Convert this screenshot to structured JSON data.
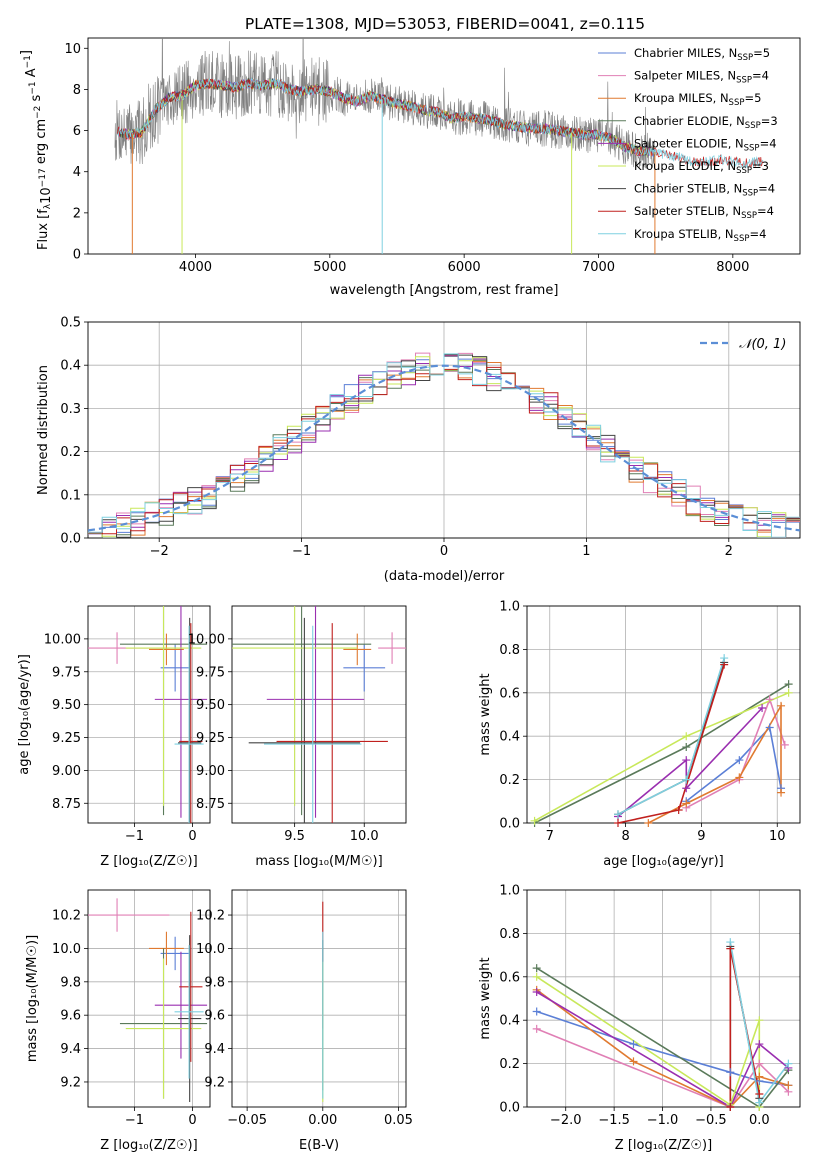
{
  "figure": {
    "title": "PLATE=1308, MJD=53053, FIBERID=0041, z=0.115"
  },
  "colors": {
    "Chabrier MILES": "#5b7fd6",
    "Salpeter MILES": "#e07fb5",
    "Kroupa MILES": "#e07a30",
    "Chabrier ELODIE": "#5a7a5a",
    "Salpeter ELODIE": "#9a2fb0",
    "Kroupa ELODIE": "#c8e85a",
    "Chabrier STELIB": "#444444",
    "Salpeter STELIB": "#c0201e",
    "Kroupa STELIB": "#7fd0e0",
    "data": "#808080",
    "normal": "#5b8ed6"
  },
  "legend_spectrum": [
    {
      "label": "Chabrier MILES, N",
      "sub": "SSP",
      "tail": "=5",
      "key": "Chabrier MILES"
    },
    {
      "label": "Salpeter MILES, N",
      "sub": "SSP",
      "tail": "=4",
      "key": "Salpeter MILES"
    },
    {
      "label": "Kroupa MILES, N",
      "sub": "SSP",
      "tail": "=5",
      "key": "Kroupa MILES"
    },
    {
      "label": "Chabrier ELODIE, N",
      "sub": "SSP",
      "tail": "=3",
      "key": "Chabrier ELODIE"
    },
    {
      "label": "Salpeter ELODIE, N",
      "sub": "SSP",
      "tail": "=4",
      "key": "Salpeter ELODIE"
    },
    {
      "label": "Kroupa ELODIE, N",
      "sub": "SSP",
      "tail": "=3",
      "key": "Kroupa ELODIE"
    },
    {
      "label": "Chabrier STELIB, N",
      "sub": "SSP",
      "tail": "=4",
      "key": "Chabrier STELIB"
    },
    {
      "label": "Salpeter STELIB, N",
      "sub": "SSP",
      "tail": "=4",
      "key": "Salpeter STELIB"
    },
    {
      "label": "Kroupa STELIB, N",
      "sub": "SSP",
      "tail": "=4",
      "key": "Kroupa STELIB"
    }
  ],
  "chart_data": [
    {
      "id": "spectrum",
      "type": "line",
      "xlabel": "wavelength [Angstrom, rest frame]",
      "ylabel": "Flux [f",
      "ylabel_parts": [
        "Flux [f",
        "λ",
        "10",
        "−17",
        " erg cm",
        "−2",
        " s",
        "−1",
        " A",
        "−1",
        "]"
      ],
      "xlim": [
        3200,
        8500
      ],
      "ylim": [
        0,
        10.5
      ],
      "xticks": [
        4000,
        5000,
        6000,
        7000,
        8000
      ],
      "yticks": [
        0,
        2,
        4,
        6,
        8,
        10
      ],
      "continuum": [
        [
          3400,
          6.0
        ],
        [
          3500,
          5.8
        ],
        [
          3600,
          5.9
        ],
        [
          3700,
          7.0
        ],
        [
          3800,
          7.6
        ],
        [
          3900,
          7.7
        ],
        [
          4000,
          8.2
        ],
        [
          4100,
          8.3
        ],
        [
          4200,
          8.2
        ],
        [
          4300,
          8.1
        ],
        [
          4400,
          8.3
        ],
        [
          4500,
          8.2
        ],
        [
          4600,
          8.3
        ],
        [
          4700,
          8.0
        ],
        [
          4800,
          7.9
        ],
        [
          4900,
          8.0
        ],
        [
          5000,
          7.9
        ],
        [
          5100,
          7.6
        ],
        [
          5200,
          7.4
        ],
        [
          5300,
          7.7
        ],
        [
          5400,
          7.5
        ],
        [
          5500,
          7.3
        ],
        [
          5600,
          7.2
        ],
        [
          5700,
          7.0
        ],
        [
          5800,
          6.9
        ],
        [
          5900,
          6.6
        ],
        [
          6000,
          6.7
        ],
        [
          6100,
          6.6
        ],
        [
          6200,
          6.5
        ],
        [
          6300,
          6.3
        ],
        [
          6400,
          6.2
        ],
        [
          6500,
          6.1
        ],
        [
          6600,
          6.1
        ],
        [
          6700,
          6.0
        ],
        [
          6800,
          5.9
        ],
        [
          6900,
          5.8
        ],
        [
          7000,
          5.8
        ],
        [
          7100,
          5.6
        ],
        [
          7200,
          5.2
        ],
        [
          7300,
          5.0
        ],
        [
          7400,
          5.0
        ],
        [
          7500,
          4.8
        ],
        [
          7600,
          4.7
        ],
        [
          7700,
          4.5
        ],
        [
          7800,
          4.5
        ],
        [
          7900,
          4.6
        ],
        [
          8000,
          4.5
        ],
        [
          8100,
          4.4
        ],
        [
          8200,
          4.5
        ]
      ]
    },
    {
      "id": "residuals",
      "type": "histogram",
      "xlabel": "(data-model)/error",
      "ylabel": "Normed distribution",
      "xlim": [
        -2.5,
        2.5
      ],
      "ylim": [
        0,
        0.5
      ],
      "xticks": [
        -2,
        -1,
        0,
        1,
        2
      ],
      "yticks": [
        0.0,
        0.1,
        0.2,
        0.3,
        0.4,
        0.5
      ],
      "legend": "𝒩(0, 1)",
      "bin_width": 0.1
    },
    {
      "id": "age_vs_Z",
      "type": "errorbar",
      "xlabel": "Z [log₁₀(Z/Z☉)]",
      "ylabel": "age  [log₁₀(age/yr)]",
      "xlim": [
        -1.8,
        0.3
      ],
      "ylim": [
        8.6,
        10.25
      ],
      "xticks": [
        -1,
        0
      ],
      "yticks": [
        8.75,
        9.0,
        9.25,
        9.5,
        9.75,
        10.0
      ],
      "points": [
        {
          "key": "Chabrier MILES",
          "x": -0.3,
          "xerr": 0.25,
          "y": 9.78,
          "yerr": 0.18
        },
        {
          "key": "Salpeter MILES",
          "x": -1.3,
          "xerr": 0.9,
          "y": 9.93,
          "yerr": 0.12
        },
        {
          "key": "Kroupa MILES",
          "x": -0.45,
          "xerr": 0.3,
          "y": 9.92,
          "yerr": 0.12
        },
        {
          "key": "Chabrier ELODIE",
          "x": -0.5,
          "xerr": 0.75,
          "y": 9.96,
          "yerr": 1.3
        },
        {
          "key": "Salpeter ELODIE",
          "x": -0.2,
          "xerr": 0.45,
          "y": 9.54,
          "yerr": 0.9
        },
        {
          "key": "Kroupa ELODIE",
          "x": -0.5,
          "xerr": 0.65,
          "y": 9.93,
          "yerr": 1.2
        },
        {
          "key": "Chabrier STELIB",
          "x": -0.05,
          "xerr": 0.2,
          "y": 9.21,
          "yerr": 0.95
        },
        {
          "key": "Salpeter STELIB",
          "x": -0.03,
          "xerr": 0.2,
          "y": 9.22,
          "yerr": 0.9
        },
        {
          "key": "Kroupa STELIB",
          "x": -0.06,
          "xerr": 0.25,
          "y": 9.2,
          "yerr": 0.9
        }
      ]
    },
    {
      "id": "age_vs_mass",
      "type": "errorbar",
      "xlabel": "mass [log₁₀(M/M☉)]",
      "ylabel": "",
      "xlim": [
        9.05,
        10.3
      ],
      "ylim": [
        8.6,
        10.25
      ],
      "xticks": [
        9.5,
        10.0
      ],
      "yticks": [
        8.75,
        9.0,
        9.25,
        9.5,
        9.75,
        10.0
      ],
      "points": [
        {
          "key": "Chabrier MILES",
          "x": 10.0,
          "xerr": 0.15,
          "y": 9.78,
          "yerr": 0.18
        },
        {
          "key": "Salpeter MILES",
          "x": 10.2,
          "xerr": 0.1,
          "y": 9.93,
          "yerr": 0.12
        },
        {
          "key": "Kroupa MILES",
          "x": 9.95,
          "xerr": 0.1,
          "y": 9.92,
          "yerr": 0.12
        },
        {
          "key": "Chabrier ELODIE",
          "x": 9.55,
          "xerr": 0.5,
          "y": 9.96,
          "yerr": 1.3
        },
        {
          "key": "Salpeter ELODIE",
          "x": 9.65,
          "xerr": 0.35,
          "y": 9.54,
          "yerr": 0.9
        },
        {
          "key": "Kroupa ELODIE",
          "x": 9.5,
          "xerr": 0.45,
          "y": 9.93,
          "yerr": 1.2
        },
        {
          "key": "Chabrier STELIB",
          "x": 9.57,
          "xerr": 0.4,
          "y": 9.21,
          "yerr": 0.95
        },
        {
          "key": "Salpeter STELIB",
          "x": 9.77,
          "xerr": 0.4,
          "y": 9.22,
          "yerr": 0.9
        },
        {
          "key": "Kroupa STELIB",
          "x": 9.63,
          "xerr": 0.35,
          "y": 9.2,
          "yerr": 0.9
        }
      ]
    },
    {
      "id": "mass_weight_vs_age",
      "type": "line",
      "xlabel": "age  [log₁₀(age/yr)]",
      "ylabel": "mass weight",
      "xlim": [
        6.7,
        10.3
      ],
      "ylim": [
        0,
        1.0
      ],
      "xticks": [
        7,
        8,
        9,
        10
      ],
      "yticks": [
        0.0,
        0.2,
        0.4,
        0.6,
        0.8,
        1.0
      ],
      "series": [
        {
          "key": "Chabrier MILES",
          "x": [
            8.8,
            9.5,
            9.9,
            10.05
          ],
          "y": [
            0.1,
            0.29,
            0.44,
            0.16
          ]
        },
        {
          "key": "Salpeter MILES",
          "x": [
            8.8,
            9.5,
            9.9,
            10.1
          ],
          "y": [
            0.07,
            0.2,
            0.57,
            0.36
          ]
        },
        {
          "key": "Kroupa MILES",
          "x": [
            8.3,
            8.8,
            9.5,
            10.05,
            10.05
          ],
          "y": [
            0.0,
            0.09,
            0.21,
            0.54,
            0.14
          ]
        },
        {
          "key": "Chabrier ELODIE",
          "x": [
            6.8,
            8.8,
            10.15
          ],
          "y": [
            0.0,
            0.35,
            0.64
          ]
        },
        {
          "key": "Salpeter ELODIE",
          "x": [
            7.9,
            8.8,
            8.8,
            9.8
          ],
          "y": [
            0.03,
            0.29,
            0.16,
            0.53
          ]
        },
        {
          "key": "Kroupa ELODIE",
          "x": [
            6.8,
            8.8,
            10.15
          ],
          "y": [
            0.01,
            0.4,
            0.6
          ]
        },
        {
          "key": "Chabrier STELIB",
          "x": [
            7.9,
            8.8,
            9.3
          ],
          "y": [
            0.04,
            0.2,
            0.74
          ]
        },
        {
          "key": "Salpeter STELIB",
          "x": [
            7.9,
            8.7,
            9.3
          ],
          "y": [
            0.0,
            0.06,
            0.73
          ]
        },
        {
          "key": "Kroupa STELIB",
          "x": [
            7.9,
            8.8,
            9.3
          ],
          "y": [
            0.04,
            0.2,
            0.76
          ]
        }
      ]
    },
    {
      "id": "mass_vs_Z",
      "type": "errorbar",
      "xlabel": "Z [log₁₀(Z/Z☉)]",
      "ylabel": "mass [log₁₀(M/M☉)]",
      "xlim": [
        -1.8,
        0.3
      ],
      "ylim": [
        9.05,
        10.35
      ],
      "xticks": [
        -1,
        0
      ],
      "yticks": [
        9.2,
        9.4,
        9.6,
        9.8,
        10.0,
        10.2
      ],
      "points": [
        {
          "key": "Chabrier MILES",
          "x": -0.3,
          "xerr": 0.25,
          "y": 9.97,
          "yerr": 0.1
        },
        {
          "key": "Salpeter MILES",
          "x": -1.3,
          "xerr": 0.9,
          "y": 10.2,
          "yerr": 0.1
        },
        {
          "key": "Kroupa MILES",
          "x": -0.45,
          "xerr": 0.3,
          "y": 10.0,
          "yerr": 0.1
        },
        {
          "key": "Chabrier ELODIE",
          "x": -0.5,
          "xerr": 0.75,
          "y": 9.55,
          "yerr": 0.45
        },
        {
          "key": "Salpeter ELODIE",
          "x": -0.2,
          "xerr": 0.45,
          "y": 9.66,
          "yerr": 0.32
        },
        {
          "key": "Kroupa ELODIE",
          "x": -0.5,
          "xerr": 0.65,
          "y": 9.52,
          "yerr": 0.42
        },
        {
          "key": "Chabrier STELIB",
          "x": -0.05,
          "xerr": 0.2,
          "y": 9.58,
          "yerr": 0.5
        },
        {
          "key": "Salpeter STELIB",
          "x": -0.03,
          "xerr": 0.2,
          "y": 9.77,
          "yerr": 0.45
        },
        {
          "key": "Kroupa STELIB",
          "x": -0.06,
          "xerr": 0.25,
          "y": 9.62,
          "yerr": 0.4
        }
      ]
    },
    {
      "id": "mass_vs_EBV",
      "type": "errorbar",
      "xlabel": "E(B-V)",
      "ylabel": "",
      "xlim": [
        -0.06,
        0.055
      ],
      "ylim": [
        9.05,
        10.35
      ],
      "xticks": [
        -0.05,
        0.0,
        0.05
      ],
      "yticks": [
        9.2,
        9.4,
        9.6,
        9.8,
        10.0,
        10.2
      ],
      "points": [
        {
          "key": "Salpeter STELIB",
          "x": 0.0,
          "xerr": 0.0,
          "y": 9.9,
          "yerr": 0.38
        },
        {
          "key": "Chabrier STELIB",
          "x": 0.0,
          "xerr": 0.0,
          "y": 9.6,
          "yerr": 0.45
        },
        {
          "key": "Kroupa ELODIE",
          "x": 0.0,
          "xerr": 0.0,
          "y": 9.5,
          "yerr": 0.42
        },
        {
          "key": "Kroupa STELIB",
          "x": 0.0,
          "xerr": 0.0,
          "y": 9.6,
          "yerr": 0.5
        }
      ]
    },
    {
      "id": "mass_weight_vs_Z",
      "type": "line",
      "xlabel": "Z [log₁₀(Z/Z☉)]",
      "ylabel": "mass weight",
      "xlim": [
        -2.4,
        0.42
      ],
      "ylim": [
        0,
        1.0
      ],
      "xticks": [
        -2.0,
        -1.5,
        -1.0,
        -0.5,
        0.0
      ],
      "yticks": [
        0.0,
        0.2,
        0.4,
        0.6,
        0.8,
        1.0
      ],
      "series": [
        {
          "key": "Chabrier MILES",
          "x": [
            -2.3,
            -1.3,
            -0.3,
            0.0,
            0.3
          ],
          "y": [
            0.44,
            0.29,
            0.16,
            0.12,
            0.1
          ]
        },
        {
          "key": "Salpeter MILES",
          "x": [
            -2.3,
            -0.3,
            0.0,
            0.3
          ],
          "y": [
            0.36,
            0.0,
            0.2,
            0.07
          ]
        },
        {
          "key": "Kroupa MILES",
          "x": [
            -2.3,
            -1.3,
            -0.3,
            0.0,
            0.3
          ],
          "y": [
            0.54,
            0.21,
            0.0,
            0.14,
            0.1
          ]
        },
        {
          "key": "Chabrier ELODIE",
          "x": [
            -2.3,
            0.0,
            0.3
          ],
          "y": [
            0.64,
            0.0,
            0.17
          ]
        },
        {
          "key": "Salpeter ELODIE",
          "x": [
            -2.3,
            -0.3,
            0.0,
            0.3
          ],
          "y": [
            0.53,
            0.0,
            0.29,
            0.18
          ]
        },
        {
          "key": "Kroupa ELODIE",
          "x": [
            -2.3,
            -0.3,
            0.0,
            0.0
          ],
          "y": [
            0.6,
            0.01,
            0.4,
            0.0
          ]
        },
        {
          "key": "Chabrier STELIB",
          "x": [
            -0.3,
            -0.3,
            0.0
          ],
          "y": [
            0.0,
            0.74,
            0.04
          ]
        },
        {
          "key": "Salpeter STELIB",
          "x": [
            -0.3,
            -0.3,
            0.0
          ],
          "y": [
            0.0,
            0.73,
            0.06
          ]
        },
        {
          "key": "Kroupa STELIB",
          "x": [
            -0.3,
            0.0,
            0.3
          ],
          "y": [
            0.76,
            0.02,
            0.2
          ]
        }
      ]
    }
  ]
}
